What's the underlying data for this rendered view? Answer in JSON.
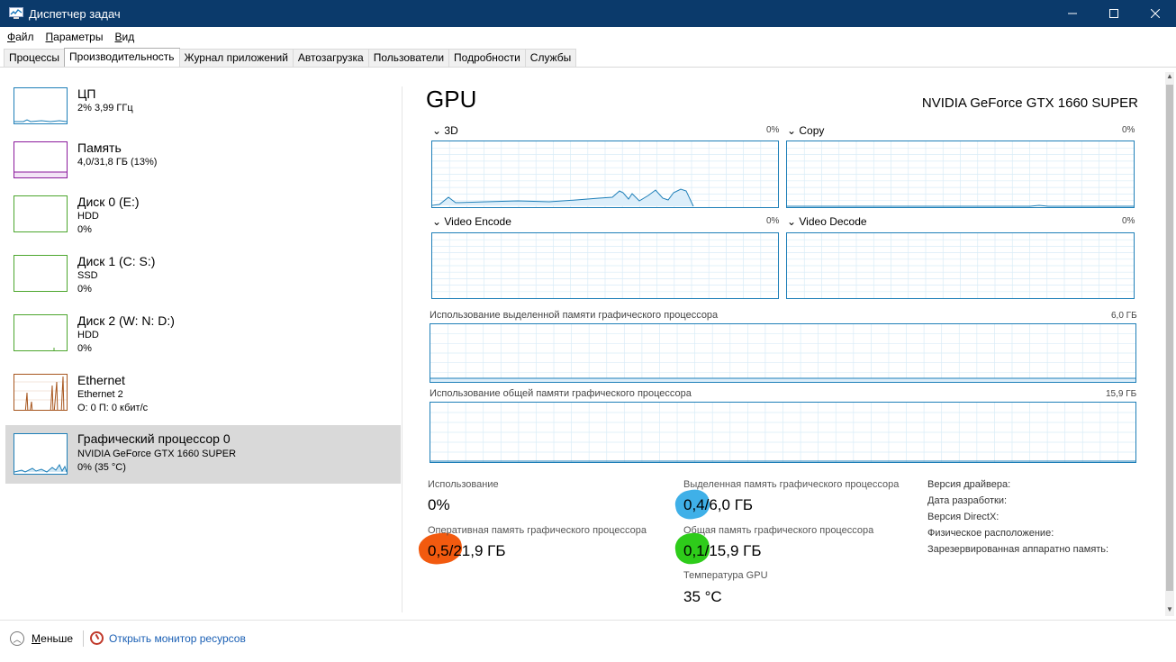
{
  "window": {
    "title": "Диспетчер задач",
    "controls": [
      "—",
      "☐",
      "✕"
    ]
  },
  "menu": [
    {
      "label": "Файл",
      "accel": "Ф",
      "rest": "айл"
    },
    {
      "label": "Параметры",
      "accel": "П",
      "rest": "араметры"
    },
    {
      "label": "Вид",
      "accel": "В",
      "rest": "ид"
    }
  ],
  "tabs": [
    "Процессы",
    "Производительность",
    "Журнал приложений",
    "Автозагрузка",
    "Пользователи",
    "Подробности",
    "Службы"
  ],
  "active_tab": "Производительность",
  "devices": [
    {
      "name": "ЦП",
      "sub": "2% 3,99 ГГц",
      "sub2": "",
      "color": "#1e7fb8"
    },
    {
      "name": "Память",
      "sub": "4,0/31,8 ГБ (13%)",
      "sub2": "",
      "color": "#8b1a9c"
    },
    {
      "name": "Диск 0 (E:)",
      "sub": "HDD",
      "sub2": "0%",
      "color": "#4ca62d"
    },
    {
      "name": "Диск 1 (C: S:)",
      "sub": "SSD",
      "sub2": "0%",
      "color": "#4ca62d"
    },
    {
      "name": "Диск 2 (W: N: D:)",
      "sub": "HDD",
      "sub2": "0%",
      "color": "#4ca62d"
    },
    {
      "name": "Ethernet",
      "sub": "Ethernet 2",
      "sub2": "О: 0 П: 0 кбит/с",
      "color": "#a7561e"
    },
    {
      "name": "Графический процессор 0",
      "sub": "NVIDIA GeForce GTX 1660 SUPER",
      "sub2": "0% (35 °C)",
      "color": "#1e7fb8"
    }
  ],
  "gpu": {
    "title": "GPU",
    "model": "NVIDIA GeForce GTX 1660 SUPER",
    "engines": [
      {
        "label": "3D",
        "pct": "0%"
      },
      {
        "label": "Copy",
        "pct": "0%"
      },
      {
        "label": "Video Encode",
        "pct": "0%"
      },
      {
        "label": "Video Decode",
        "pct": "0%"
      }
    ],
    "dedicated_label": "Использование выделенной памяти графического процессора",
    "dedicated_max": "6,0 ГБ",
    "shared_label": "Использование общей памяти графического процессора",
    "shared_max": "15,9 ГБ"
  },
  "stats": {
    "usage_label": "Использование",
    "usage_value": "0%",
    "dedicated_label": "Выделенная память графического процессора",
    "dedicated_value": "0,4/6,0 ГБ",
    "ram_label": "Оперативная память графического процессора",
    "ram_value": "0,5/21,9 ГБ",
    "shared_label": "Общая память графического процессора",
    "shared_value": "0,1/15,9 ГБ",
    "temp_label": "Температура GPU",
    "temp_value": "35 °C"
  },
  "info": [
    {
      "label": "Версия драйвера:"
    },
    {
      "label": "Дата разработки:"
    },
    {
      "label": "Версия DirectX:"
    },
    {
      "label": "Физическое расположение:"
    },
    {
      "label": "Зарезервированная аппаратно память:"
    }
  ],
  "annotation_colors": {
    "blue": "#3fb0e8",
    "green": "#2ecc1a",
    "orange": "#f25a0f"
  },
  "footer": {
    "less_label": "Меньше",
    "less_accel": "М",
    "less_rest": "еньше",
    "resmon_label": "Открыть монитор ресурсов"
  }
}
